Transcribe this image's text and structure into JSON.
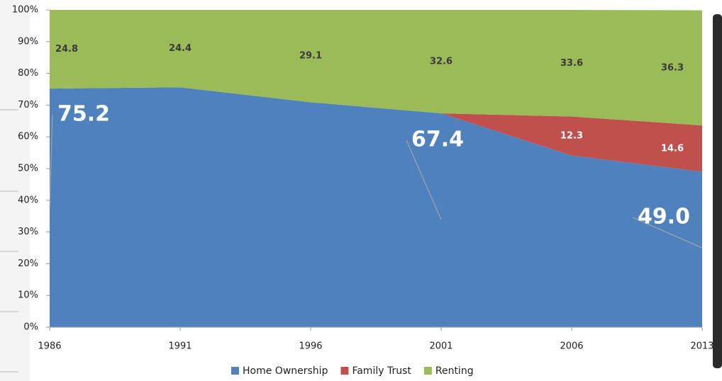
{
  "chart_data": {
    "type": "stacked-area",
    "categories": [
      "1986",
      "1991",
      "1996",
      "2001",
      "2006",
      "2013"
    ],
    "series": [
      {
        "name": "Home Ownership",
        "color": "#4f81bd",
        "values": [
          75.2,
          75.6,
          70.9,
          67.4,
          54.1,
          49.0
        ],
        "value_labels": [
          "75.2",
          null,
          null,
          "67.4",
          null,
          "49.0"
        ]
      },
      {
        "name": "Family Trust",
        "color": "#c0504d",
        "values": [
          0,
          0,
          0,
          0,
          12.3,
          14.6
        ],
        "value_labels": [
          null,
          null,
          null,
          null,
          "12.3",
          "14.6"
        ]
      },
      {
        "name": "Renting",
        "color": "#9bbb59",
        "values": [
          24.8,
          24.4,
          29.1,
          32.6,
          33.6,
          36.3
        ]
      }
    ],
    "ylim": [
      0,
      100
    ],
    "yticks": [
      {
        "value": 0,
        "label": "0%"
      },
      {
        "value": 10,
        "label": "10%"
      },
      {
        "value": 20,
        "label": "20%"
      },
      {
        "value": 30,
        "label": "30%"
      },
      {
        "value": 40,
        "label": "40%"
      },
      {
        "value": 50,
        "label": "50%"
      },
      {
        "value": 60,
        "label": "60%"
      },
      {
        "value": 70,
        "label": "70%"
      },
      {
        "value": 80,
        "label": "80%"
      },
      {
        "value": 90,
        "label": "90%"
      },
      {
        "value": 100,
        "label": "100%"
      }
    ],
    "legend": "bottom"
  }
}
